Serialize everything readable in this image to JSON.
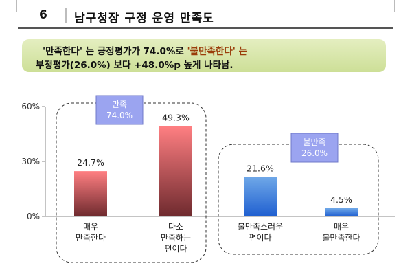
{
  "header": {
    "number": "6",
    "title": "남구청장 구정 운영 만족도"
  },
  "summary": {
    "line1_prefix": "'만족한다' 는 긍정평가가 74.0%로 ",
    "line1_highlight": "'불만족한다' 는",
    "line2": "부정평가(26.0%) 보다 +48.0%p 높게 나타남."
  },
  "chart_data": {
    "type": "bar",
    "categories": [
      [
        "매우",
        "만족한다"
      ],
      [
        "다소",
        "만족하는",
        "편이다"
      ],
      [
        "불만족스러운",
        "편이다"
      ],
      [
        "매우",
        "불만족한다"
      ]
    ],
    "values": [
      24.7,
      49.3,
      21.6,
      4.5
    ],
    "value_labels": [
      "24.7%",
      "49.3%",
      "21.6%",
      "4.5%"
    ],
    "ylim": [
      0,
      60
    ],
    "yticks": [
      0,
      30,
      60
    ],
    "ytick_labels": [
      "0%",
      "30%",
      "60%"
    ],
    "groups": [
      {
        "label": [
          "만족",
          "74.0%"
        ],
        "categories": [
          0,
          1
        ],
        "color": "#9ba4f0"
      },
      {
        "label": [
          "불만족",
          "26.0%"
        ],
        "categories": [
          2,
          3
        ],
        "color": "#9ba4f0"
      }
    ],
    "bar_colors": [
      {
        "top": "#ff7f82",
        "bottom": "#6e2a2e"
      },
      {
        "top": "#ff7f82",
        "bottom": "#6e2a2e"
      },
      {
        "top": "#6fa8e8",
        "bottom": "#1f5fd0"
      },
      {
        "top": "#6fa8e8",
        "bottom": "#1f5fd0"
      }
    ]
  }
}
